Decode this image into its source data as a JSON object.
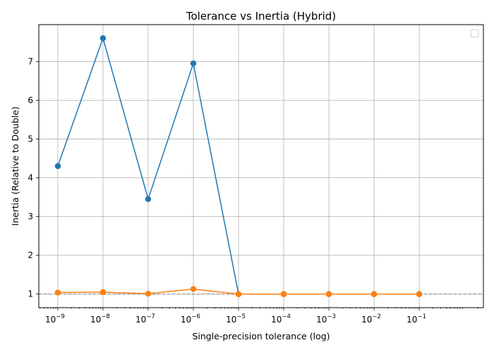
{
  "chart_data": {
    "type": "line",
    "title": "Tolerance vs Inertia (Hybrid)",
    "xlabel": "Single-precision tolerance (log)",
    "ylabel": "Inertia (Relative to Double)",
    "xscale": "log",
    "x": [
      1e-09,
      1e-08,
      1e-07,
      1e-06,
      1e-05,
      0.0001,
      0.001,
      0.01,
      0.1
    ],
    "x_tick_labels": [
      {
        "base": "10",
        "exp": "−9"
      },
      {
        "base": "10",
        "exp": "−8"
      },
      {
        "base": "10",
        "exp": "−7"
      },
      {
        "base": "10",
        "exp": "−6"
      },
      {
        "base": "10",
        "exp": "−5"
      },
      {
        "base": "10",
        "exp": "−4"
      },
      {
        "base": "10",
        "exp": "−3"
      },
      {
        "base": "10",
        "exp": "−2"
      },
      {
        "base": "10",
        "exp": "−1"
      }
    ],
    "xlim_exp": [
      -9.42,
      0.42
    ],
    "ylim": [
      0.65,
      7.95
    ],
    "y_ticks": [
      1,
      2,
      3,
      4,
      5,
      6,
      7
    ],
    "y_tick_labels": [
      "1",
      "2",
      "3",
      "4",
      "5",
      "6",
      "7"
    ],
    "grid": true,
    "legend": "top-right",
    "reference_line": {
      "y": 1.0,
      "style": "dashed",
      "color": "#808080"
    },
    "series": [
      {
        "color": "#1f77b4",
        "values": [
          4.3,
          7.6,
          3.45,
          6.95,
          1.0,
          1.0,
          1.0,
          1.0,
          1.0
        ]
      },
      {
        "color": "#ff7f0e",
        "values": [
          1.04,
          1.05,
          1.01,
          1.13,
          1.0,
          1.0,
          1.0,
          1.0,
          1.0
        ]
      }
    ]
  }
}
